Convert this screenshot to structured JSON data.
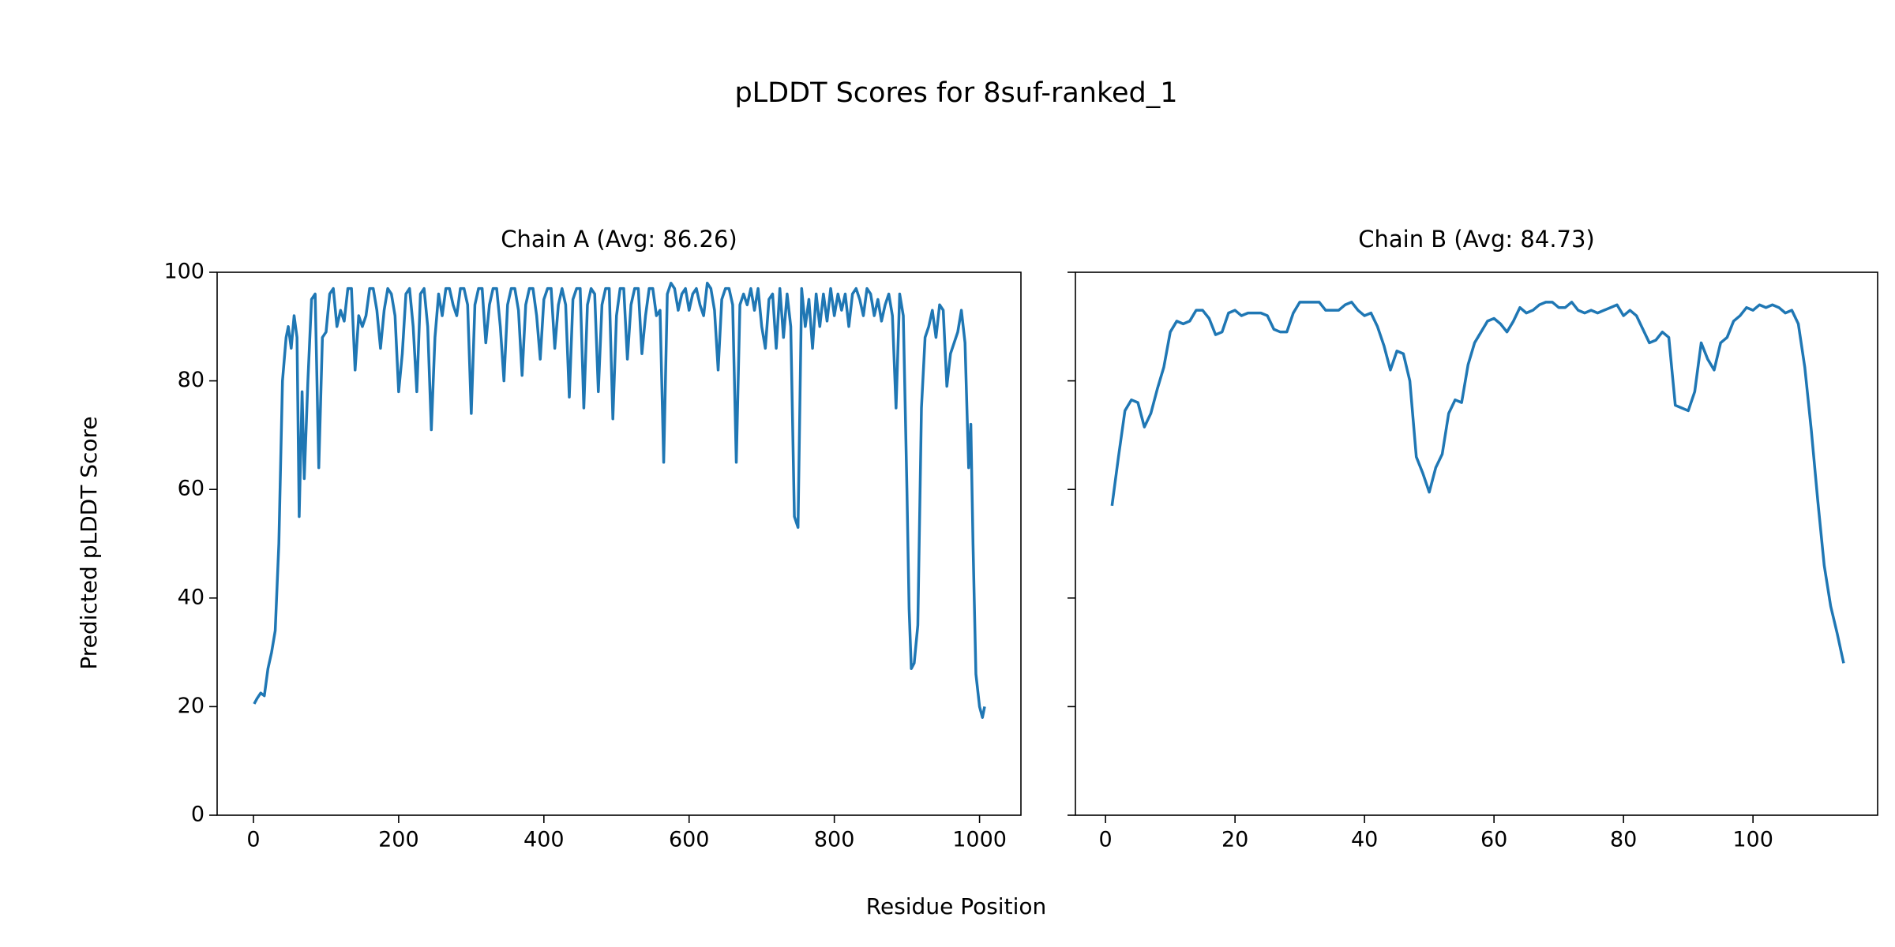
{
  "title": "pLDDT Scores for 8suf-ranked_1",
  "xlabel": "Residue Position",
  "ylabel": "Predicted pLDDT Score",
  "chart_data": [
    {
      "type": "line",
      "title": "Chain A (Avg: 86.26)",
      "xlim": [
        -50,
        1057
      ],
      "ylim": [
        0,
        100
      ],
      "xticks": [
        0,
        200,
        400,
        600,
        800,
        1000
      ],
      "yticks": [
        0,
        20,
        40,
        60,
        80,
        100
      ],
      "series": [
        {
          "name": "Chain A",
          "color": "#1f77b4",
          "x": [
            1,
            5,
            10,
            15,
            20,
            25,
            30,
            35,
            40,
            45,
            48,
            52,
            56,
            60,
            63,
            67,
            70,
            75,
            80,
            85,
            90,
            95,
            100,
            105,
            110,
            115,
            120,
            125,
            130,
            135,
            140,
            145,
            150,
            155,
            160,
            165,
            170,
            175,
            180,
            185,
            190,
            195,
            200,
            205,
            210,
            215,
            220,
            225,
            230,
            235,
            240,
            245,
            250,
            255,
            260,
            265,
            270,
            275,
            280,
            285,
            290,
            295,
            300,
            305,
            310,
            315,
            320,
            325,
            330,
            335,
            340,
            345,
            350,
            355,
            360,
            365,
            370,
            375,
            380,
            385,
            390,
            395,
            400,
            405,
            410,
            415,
            420,
            425,
            430,
            435,
            440,
            445,
            450,
            455,
            460,
            465,
            470,
            475,
            480,
            485,
            490,
            495,
            500,
            505,
            510,
            515,
            520,
            525,
            530,
            535,
            540,
            545,
            550,
            555,
            560,
            565,
            570,
            575,
            580,
            585,
            590,
            595,
            600,
            605,
            610,
            615,
            620,
            625,
            630,
            635,
            640,
            645,
            650,
            655,
            660,
            665,
            670,
            675,
            680,
            685,
            690,
            695,
            700,
            705,
            710,
            715,
            720,
            725,
            730,
            735,
            740,
            745,
            750,
            755,
            760,
            765,
            770,
            775,
            780,
            785,
            790,
            795,
            800,
            805,
            810,
            815,
            820,
            825,
            830,
            835,
            840,
            845,
            850,
            855,
            860,
            865,
            870,
            875,
            880,
            885,
            890,
            895,
            900,
            903,
            906,
            910,
            915,
            920,
            925,
            930,
            935,
            940,
            945,
            950,
            955,
            960,
            965,
            970,
            975,
            980,
            985,
            988,
            991,
            995,
            1000,
            1004,
            1007
          ],
          "values": [
            20.5,
            21.5,
            22.5,
            22,
            27,
            30,
            34,
            50,
            80,
            88,
            90,
            86,
            92,
            88,
            55,
            78,
            62,
            80,
            95,
            96,
            64,
            88,
            89,
            96,
            97,
            90,
            93,
            91,
            97,
            97,
            82,
            92,
            90,
            92,
            97,
            97,
            93,
            86,
            93,
            97,
            96,
            92,
            78,
            85,
            96,
            97,
            90,
            78,
            96,
            97,
            90,
            71,
            88,
            96,
            92,
            97,
            97,
            94,
            92,
            97,
            97,
            94,
            74,
            94,
            97,
            97,
            87,
            94,
            97,
            97,
            90,
            80,
            94,
            97,
            97,
            93,
            81,
            94,
            97,
            97,
            92,
            84,
            95,
            97,
            97,
            86,
            94,
            97,
            94,
            77,
            95,
            97,
            97,
            75,
            94,
            97,
            96,
            78,
            94,
            97,
            97,
            73,
            92,
            97,
            97,
            84,
            94,
            97,
            97,
            85,
            92,
            97,
            97,
            92,
            93,
            65,
            96,
            98,
            97,
            93,
            96,
            97,
            93,
            96,
            97,
            94,
            92,
            98,
            97,
            93,
            82,
            95,
            97,
            97,
            94,
            65,
            94,
            96,
            94,
            97,
            93,
            97,
            90,
            86,
            95,
            96,
            86,
            97,
            88,
            96,
            90,
            55,
            53,
            97,
            90,
            95,
            86,
            96,
            90,
            96,
            91,
            97,
            92,
            96,
            93,
            96,
            90,
            96,
            97,
            95,
            92,
            97,
            96,
            92,
            95,
            91,
            94,
            96,
            92,
            75,
            96,
            92,
            60,
            38,
            27,
            28,
            35,
            75,
            88,
            90,
            93,
            88,
            94,
            93,
            79,
            85,
            87,
            89,
            93,
            87,
            64,
            72,
            50,
            26,
            20,
            18,
            20
          ]
        }
      ]
    },
    {
      "type": "line",
      "title": "Chain B (Avg: 84.73)",
      "xlim": [
        -4.65,
        119.25
      ],
      "ylim": [
        0,
        100
      ],
      "xticks": [
        0,
        20,
        40,
        60,
        80,
        100
      ],
      "yticks": [
        0,
        20,
        40,
        60,
        80,
        100
      ],
      "ytick_labels": false,
      "series": [
        {
          "name": "Chain B",
          "color": "#1f77b4",
          "x": [
            1,
            2,
            3,
            4,
            5,
            6,
            7,
            8,
            9,
            10,
            11,
            12,
            13,
            14,
            15,
            16,
            17,
            18,
            19,
            20,
            21,
            22,
            23,
            24,
            25,
            26,
            27,
            28,
            29,
            30,
            31,
            32,
            33,
            34,
            35,
            36,
            37,
            38,
            39,
            40,
            41,
            42,
            43,
            44,
            45,
            46,
            47,
            48,
            49,
            50,
            51,
            52,
            53,
            54,
            55,
            56,
            57,
            58,
            59,
            60,
            61,
            62,
            63,
            64,
            65,
            66,
            67,
            68,
            69,
            70,
            71,
            72,
            73,
            74,
            75,
            76,
            77,
            78,
            79,
            80,
            81,
            82,
            83,
            84,
            85,
            86,
            87,
            88,
            89,
            90,
            91,
            92,
            93,
            94,
            95,
            96,
            97,
            98,
            99,
            100,
            101,
            102,
            103,
            104,
            105,
            106,
            107,
            108,
            109,
            110,
            111,
            112,
            113,
            114
          ],
          "values": [
            57,
            66,
            74.5,
            76.5,
            76,
            71.5,
            74,
            78.5,
            82.5,
            89,
            91,
            90.5,
            91,
            93,
            93,
            91.5,
            88.5,
            89,
            92.5,
            93,
            92,
            92.5,
            92.5,
            92.5,
            92,
            89.5,
            89,
            89,
            92.5,
            94.5,
            94.5,
            94.5,
            94.5,
            93,
            93,
            93,
            94,
            94.5,
            93,
            92,
            92.5,
            90,
            86.5,
            82,
            85.5,
            85,
            80,
            66,
            63,
            59.5,
            64,
            66.5,
            74,
            76.5,
            76,
            83,
            87,
            89,
            91,
            91.5,
            90.5,
            89,
            91,
            93.5,
            92.5,
            93,
            94,
            94.5,
            94.5,
            93.5,
            93.5,
            94.5,
            93,
            92.5,
            93,
            92.5,
            93,
            93.5,
            94,
            92,
            93,
            92,
            89.5,
            87,
            87.5,
            89,
            88,
            75.5,
            75,
            74.5,
            78,
            87,
            84,
            82,
            87,
            88,
            91,
            92,
            93.5,
            93,
            94,
            93.5,
            94,
            93.5,
            92.5,
            93,
            90.5,
            82.5,
            71,
            58,
            46,
            38.5,
            33.5,
            28
          ]
        }
      ]
    }
  ]
}
